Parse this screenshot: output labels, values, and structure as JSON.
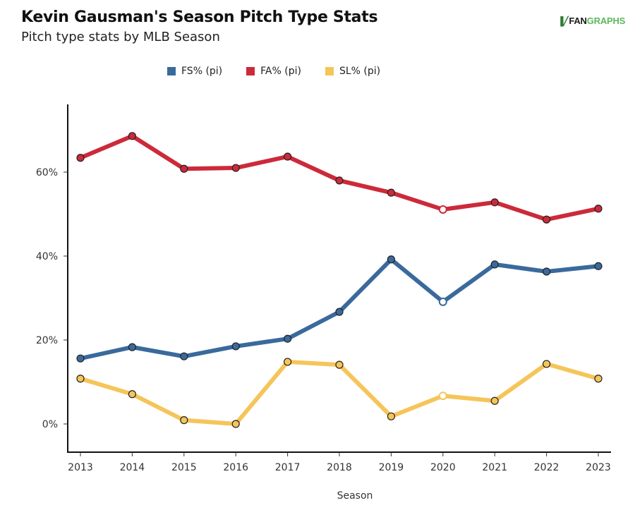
{
  "header": {
    "title": "Kevin Gausman's Season Pitch Type Stats",
    "subtitle": "Pitch type stats by MLB Season",
    "logo": {
      "fan": "FAN",
      "graphs": "GRAPHS",
      "icon": "batter-icon"
    }
  },
  "chart_data": {
    "type": "line",
    "title": "Kevin Gausman's Season Pitch Type Stats",
    "subtitle": "Pitch type stats by MLB Season",
    "xlabel": "Season",
    "ylabel": "",
    "x": [
      2013,
      2014,
      2015,
      2016,
      2017,
      2018,
      2019,
      2020,
      2021,
      2022,
      2023
    ],
    "x_tick_labels": [
      "2013",
      "2014",
      "2015",
      "2016",
      "2017",
      "2018",
      "2019",
      "2020",
      "2021",
      "2022",
      "2023"
    ],
    "y_ticks": [
      0,
      20,
      40,
      60
    ],
    "y_tick_labels": [
      "0%",
      "20%",
      "40%",
      "60%"
    ],
    "ylim": [
      -6.8,
      76
    ],
    "grid": false,
    "legend_position": "top-center",
    "hollow_points_x": [
      2020
    ],
    "series": [
      {
        "name": "FS% (pi)",
        "color": "#3a6a9c",
        "values": [
          15.6,
          18.3,
          16.1,
          18.5,
          20.3,
          26.7,
          39.2,
          29.1,
          38.0,
          36.3,
          37.6
        ]
      },
      {
        "name": "FA% (pi)",
        "color": "#cc2a3a",
        "values": [
          63.4,
          68.6,
          60.8,
          61.0,
          63.7,
          58.0,
          55.1,
          51.1,
          52.8,
          48.7,
          51.3
        ]
      },
      {
        "name": "SL% (pi)",
        "color": "#f5c55a",
        "values": [
          10.8,
          7.1,
          0.9,
          0.0,
          14.8,
          14.1,
          1.8,
          6.7,
          5.5,
          14.3,
          10.8
        ]
      }
    ]
  }
}
